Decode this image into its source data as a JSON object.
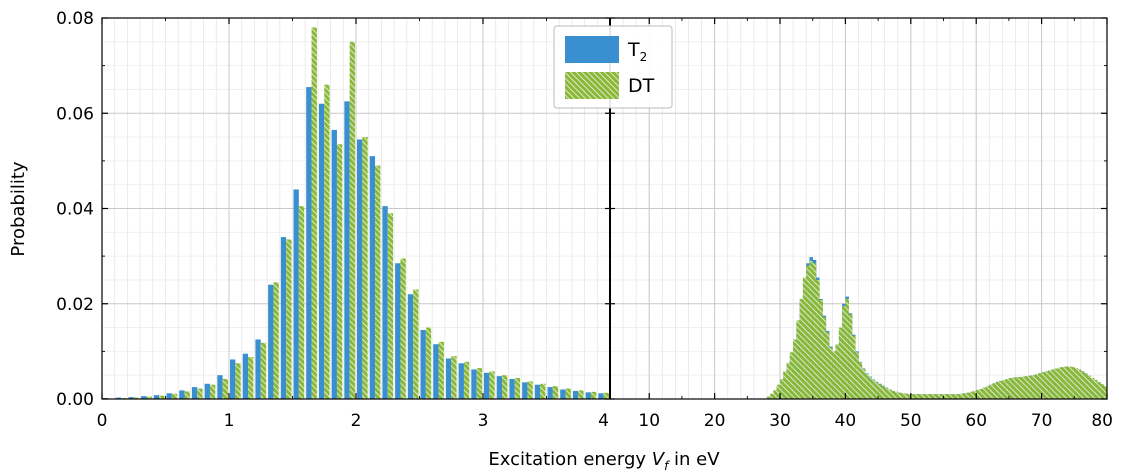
{
  "chart_data": {
    "type": "bar",
    "title": "",
    "xlabel": "Excitation energy V_f in eV",
    "ylabel": "Probability",
    "ylim": [
      0,
      0.08
    ],
    "yticks": [
      "0.00",
      "0.02",
      "0.04",
      "0.06",
      "0.08"
    ],
    "grid": true,
    "legend_position": "top-center",
    "x_axis": {
      "segments": [
        {
          "range": [
            0,
            4
          ],
          "ticks": [
            "0",
            "1",
            "2",
            "3",
            "4"
          ],
          "minor_step": 0.1
        },
        {
          "range": [
            4,
            80
          ],
          "ticks": [
            "10",
            "20",
            "30",
            "40",
            "50",
            "60",
            "70",
            "80"
          ],
          "tick_values": [
            10,
            20,
            30,
            40,
            50,
            60,
            70,
            80
          ],
          "minor_step": 2
        }
      ]
    },
    "series": [
      {
        "name": "T2",
        "color": "#3a8fd0"
      },
      {
        "name": "DT",
        "color": "#8ab838",
        "pattern": "hatch"
      }
    ],
    "segments": [
      {
        "x_start": 0.0,
        "bin_width": 0.1,
        "T2": [
          0.0002,
          0.0003,
          0.0004,
          0.0006,
          0.0008,
          0.0012,
          0.0018,
          0.0025,
          0.0032,
          0.005,
          0.0083,
          0.0095,
          0.0125,
          0.024,
          0.034,
          0.044,
          0.0655,
          0.062,
          0.0565,
          0.0625,
          0.0545,
          0.051,
          0.0405,
          0.0285,
          0.022,
          0.0145,
          0.0115,
          0.0085,
          0.0075,
          0.0062,
          0.0055,
          0.0048,
          0.0042,
          0.0035,
          0.003,
          0.0025,
          0.002,
          0.0017,
          0.0014,
          0.0012
        ],
        "DT": [
          0.0001,
          0.0002,
          0.0003,
          0.0005,
          0.0007,
          0.0011,
          0.0016,
          0.0022,
          0.003,
          0.0042,
          0.0075,
          0.0088,
          0.0118,
          0.0245,
          0.0335,
          0.0405,
          0.078,
          0.066,
          0.0535,
          0.075,
          0.055,
          0.049,
          0.039,
          0.0295,
          0.023,
          0.015,
          0.012,
          0.009,
          0.0078,
          0.0065,
          0.0058,
          0.005,
          0.0044,
          0.0037,
          0.0032,
          0.0027,
          0.0022,
          0.0018,
          0.0015,
          0.0013
        ]
      },
      {
        "x_start": 4,
        "bin_width": 0.5,
        "T2": [
          0,
          0,
          0,
          0,
          0,
          0,
          0,
          0,
          0,
          0,
          0,
          0,
          0,
          0,
          0,
          0,
          0,
          0,
          0,
          0,
          0,
          0,
          0,
          0,
          0,
          0,
          0,
          0,
          0,
          0,
          0,
          0,
          0,
          0,
          0,
          0,
          0,
          0,
          0,
          0,
          0,
          0,
          0,
          0,
          0,
          0,
          0,
          0,
          0.0004,
          0.001,
          0.0018,
          0.0028,
          0.004,
          0.0056,
          0.0074,
          0.0096,
          0.0122,
          0.016,
          0.0205,
          0.025,
          0.0285,
          0.0298,
          0.0292,
          0.0255,
          0.021,
          0.0175,
          0.0143,
          0.011,
          0.0098,
          0.0112,
          0.0148,
          0.02,
          0.0215,
          0.018,
          0.0135,
          0.01,
          0.0078,
          0.0064,
          0.0054,
          0.0047,
          0.0041,
          0.0036,
          0.0032,
          0.0028,
          0.0024,
          0.002,
          0.0017,
          0.0015,
          0.0013,
          0.0012,
          0.0011,
          0.001,
          0.001,
          0.001,
          0.001,
          0.001,
          0.001,
          0.001,
          0.001,
          0.001,
          0.001,
          0.001,
          0.001,
          0.001,
          0.001,
          0.001,
          0.001,
          0.0011,
          0.0012,
          0.0013,
          0.0015,
          0.0017,
          0.0019,
          0.0021,
          0.0024,
          0.0027,
          0.003,
          0.0033,
          0.0036,
          0.0038,
          0.004,
          0.0042,
          0.0044,
          0.0045,
          0.0046,
          0.0046,
          0.0047,
          0.0048,
          0.0049,
          0.005,
          0.0052,
          0.0054,
          0.0056,
          0.0058,
          0.006,
          0.0062,
          0.0064,
          0.0066,
          0.0067,
          0.0068,
          0.0068,
          0.0067,
          0.0065,
          0.0062,
          0.0058,
          0.0054,
          0.0049,
          0.0044,
          0.004,
          0.0035,
          0.0031,
          0.0027,
          0.0024,
          0.0021,
          0.0018,
          0.0016,
          0.0014,
          0.0013,
          0.0012
        ],
        "DT": [
          0,
          0,
          0,
          0,
          0,
          0,
          0,
          0,
          0,
          0,
          0,
          0,
          0,
          0,
          0,
          0,
          0,
          0,
          0,
          0,
          0,
          0,
          0,
          0,
          0,
          0,
          0,
          0,
          0,
          0,
          0,
          0,
          0,
          0,
          0,
          0,
          0,
          0,
          0,
          0,
          0,
          0,
          0,
          0,
          0,
          0,
          0,
          0,
          0.0005,
          0.0011,
          0.0019,
          0.003,
          0.0042,
          0.0058,
          0.0076,
          0.0098,
          0.0125,
          0.0165,
          0.021,
          0.0255,
          0.028,
          0.029,
          0.0285,
          0.025,
          0.0208,
          0.0172,
          0.014,
          0.0108,
          0.01,
          0.0115,
          0.015,
          0.0195,
          0.021,
          0.0178,
          0.0133,
          0.0098,
          0.0077,
          0.0063,
          0.0053,
          0.0046,
          0.004,
          0.0035,
          0.0031,
          0.0027,
          0.0023,
          0.002,
          0.0017,
          0.0015,
          0.0013,
          0.0012,
          0.0011,
          0.001,
          0.001,
          0.001,
          0.001,
          0.001,
          0.001,
          0.001,
          0.001,
          0.001,
          0.001,
          0.001,
          0.001,
          0.001,
          0.001,
          0.001,
          0.001,
          0.0011,
          0.0012,
          0.0013,
          0.0015,
          0.0017,
          0.0019,
          0.0021,
          0.0024,
          0.0027,
          0.003,
          0.0033,
          0.0036,
          0.0038,
          0.004,
          0.0042,
          0.0044,
          0.0045,
          0.0046,
          0.0046,
          0.0047,
          0.0048,
          0.0049,
          0.005,
          0.0052,
          0.0054,
          0.0056,
          0.0058,
          0.006,
          0.0062,
          0.0064,
          0.0066,
          0.0067,
          0.0068,
          0.0068,
          0.0067,
          0.0065,
          0.0062,
          0.0058,
          0.0054,
          0.0049,
          0.0044,
          0.004,
          0.0035,
          0.0031,
          0.0027,
          0.0024,
          0.0021,
          0.0018,
          0.0016,
          0.0014,
          0.0013,
          0.0012
        ]
      }
    ]
  }
}
